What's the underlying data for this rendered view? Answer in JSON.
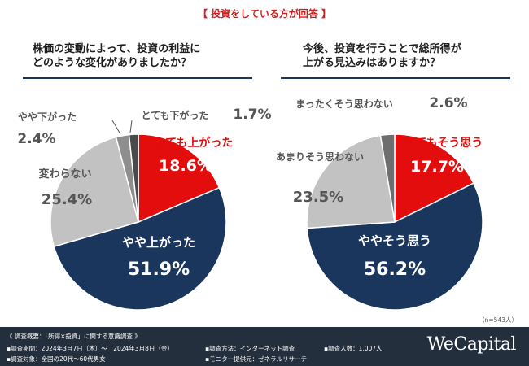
{
  "header": {
    "banner": "【 投資をしている方が回答 】"
  },
  "chart_data": [
    {
      "type": "pie",
      "title_line1": "株価の変動によって、投資の利益に",
      "title_line2": "どのような変化がありましたか？",
      "slices": [
        {
          "label": "とても上がった",
          "value": 18.6,
          "color": "#e30d0d"
        },
        {
          "label": "やや上がった",
          "value": 51.9,
          "color": "#1b365d"
        },
        {
          "label": "変わらない",
          "value": 25.4,
          "color": "#c2c2c2"
        },
        {
          "label": "やや下がった",
          "value": 2.4,
          "color": "#8e8e8e"
        },
        {
          "label": "とても下がった",
          "value": 1.7,
          "color": "#4a4a4a"
        }
      ]
    },
    {
      "type": "pie",
      "title_line1": "今後、投資を行うことで総所得が",
      "title_line2": "上がる見込みはありますか？",
      "slices": [
        {
          "label": "とてもそう思う",
          "value": 17.7,
          "color": "#e30d0d"
        },
        {
          "label": "ややそう思う",
          "value": 56.2,
          "color": "#1b365d"
        },
        {
          "label": "あまりそう思わない",
          "value": 23.5,
          "color": "#c2c2c2"
        },
        {
          "label": "まったくそう思わない",
          "value": 2.6,
          "color": "#6e6e6e"
        }
      ]
    }
  ],
  "note": "（n=543人）",
  "footer": {
    "survey_title": "《 調査概要：「所得×投資」に関する意識調査 》",
    "period": "▪調査期間：2024年3月7日（木）～　2024年3月8日（金）",
    "method": "▪調査方法：インターネット調査",
    "count": "▪調査人数：1,007人",
    "target": "▪調査対象：全国の20代～60代男女",
    "provider": "▪モニター提供元：ゼネラルリサーチ",
    "logo": "WeCapital"
  }
}
